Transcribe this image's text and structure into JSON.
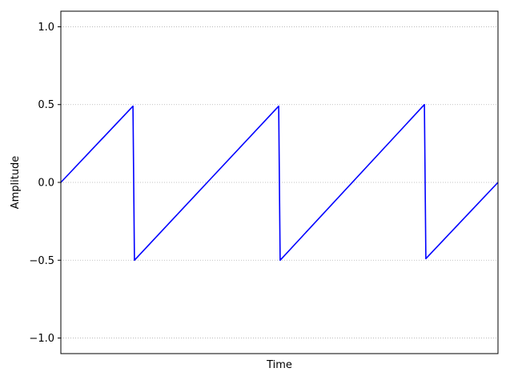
{
  "chart_data": {
    "type": "line",
    "title": "",
    "xlabel": "Time",
    "ylabel": "Amplitude",
    "x_ticks_shown": false,
    "xlim": [
      0,
      3
    ],
    "ylim": [
      -1.1,
      1.1
    ],
    "y_ticks": [
      -1.0,
      -0.5,
      0.0,
      0.5,
      1.0
    ],
    "y_tick_labels": [
      "−1.0",
      "−0.5",
      "0.0",
      "0.5",
      "1.0"
    ],
    "grid": "horizontal, dotted",
    "legend": "none",
    "series": [
      {
        "color": "#0000ff",
        "x": [
          0,
          0.495,
          0.505,
          1.495,
          1.505,
          2.495,
          2.505,
          3.0
        ],
        "y": [
          0,
          0.49,
          -0.5,
          0.49,
          -0.5,
          0.5,
          -0.49,
          0
        ]
      }
    ]
  }
}
